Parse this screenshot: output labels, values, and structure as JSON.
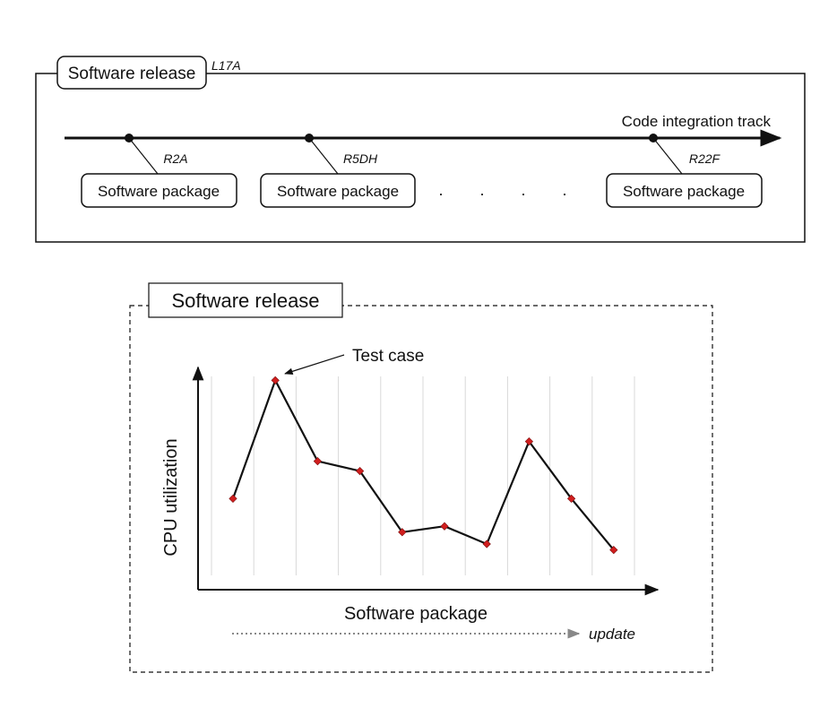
{
  "top_diagram": {
    "release_label": "Software release",
    "release_id": "L17A",
    "track_label": "Code integration track",
    "ellipsis": ". . . .",
    "packages": [
      {
        "label": "Software package",
        "id": "R2A"
      },
      {
        "label": "Software package",
        "id": "R5DH"
      },
      {
        "label": "Software package",
        "id": "R22F"
      }
    ]
  },
  "bottom_chart": {
    "release_label": "Software release",
    "annotation": "Test case",
    "update_label": "update",
    "colors": {
      "line": "#111111",
      "marker": "#d01e1e",
      "grid": "#d9d9d9"
    }
  },
  "chart_data": {
    "type": "line",
    "xlabel": "Software package",
    "ylabel": "CPU utilization",
    "grid": "vertical",
    "ylim": [
      0,
      1
    ],
    "x": [
      1,
      2,
      3,
      4,
      5,
      6,
      7,
      8,
      9,
      10
    ],
    "values": [
      0.38,
      0.98,
      0.57,
      0.52,
      0.21,
      0.24,
      0.15,
      0.67,
      0.38,
      0.12
    ]
  }
}
